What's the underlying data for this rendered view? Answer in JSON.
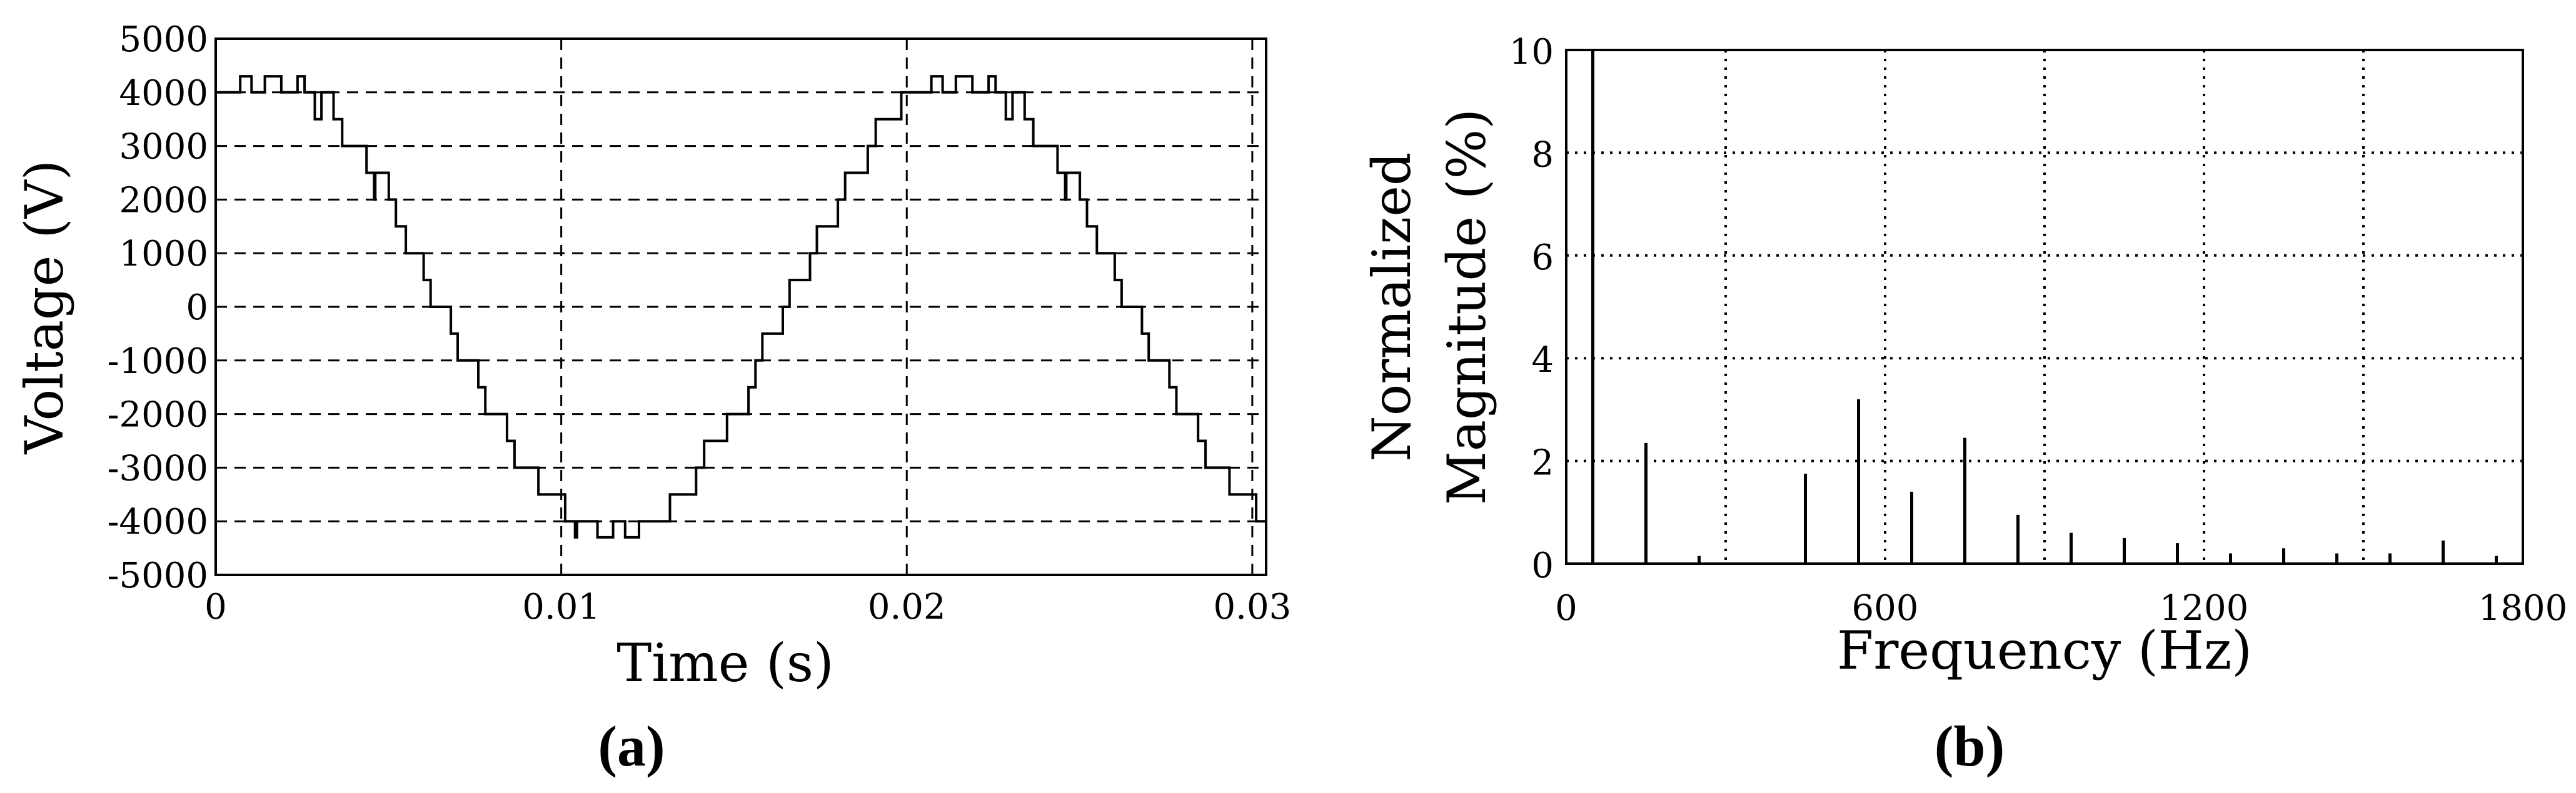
{
  "figure": {
    "panel_a_label": "(a)",
    "panel_b_label": "(b)"
  },
  "chart_data": [
    {
      "type": "line",
      "title": "",
      "xlabel": "Time (s)",
      "ylabel": "Voltage (V)",
      "xlim": [
        0,
        0.0304
      ],
      "ylim": [
        -5000,
        5000
      ],
      "x_ticks": [
        0,
        0.01,
        0.02,
        0.03
      ],
      "x_tick_labels": [
        "0",
        "0.01",
        "0.02",
        "0.03"
      ],
      "y_ticks": [
        5000,
        4000,
        3000,
        2000,
        1000,
        0,
        -1000,
        -2000,
        -3000,
        -4000,
        -5000
      ],
      "y_tick_labels": [
        "5000",
        "4000",
        "3000",
        "2000",
        "1000",
        "0",
        "-1000",
        "-2000",
        "-3000",
        "-4000",
        "-5000"
      ],
      "grid": true,
      "series": [
        {
          "description": "multilevel staircase PWM voltage, fundamental 50 Hz",
          "amplitude": 4300,
          "frequency_hz": 50,
          "phase_deg": 62,
          "level_step": 500,
          "color": "#000000"
        }
      ]
    },
    {
      "type": "bar",
      "title": "",
      "xlabel": "Frequency (Hz)",
      "ylabel": "Normalized Magnitude (%)",
      "ylabel_lines": [
        "Normalized",
        "Magnitude (%)"
      ],
      "xlim": [
        0,
        1800
      ],
      "ylim": [
        0,
        10
      ],
      "x_ticks": [
        0,
        600,
        1200,
        1800
      ],
      "y_ticks": [
        0,
        2,
        4,
        6,
        8,
        10
      ],
      "grid_x": [
        300,
        600,
        900,
        1200,
        1500
      ],
      "grid_y": [
        2,
        4,
        6,
        8
      ],
      "grid": true,
      "bars": [
        {
          "x": 50,
          "y": 10
        },
        {
          "x": 150,
          "y": 2.35
        },
        {
          "x": 250,
          "y": 0.15
        },
        {
          "x": 450,
          "y": 1.75
        },
        {
          "x": 550,
          "y": 3.2
        },
        {
          "x": 650,
          "y": 1.4
        },
        {
          "x": 750,
          "y": 2.45
        },
        {
          "x": 850,
          "y": 0.95
        },
        {
          "x": 950,
          "y": 0.6
        },
        {
          "x": 1050,
          "y": 0.5
        },
        {
          "x": 1150,
          "y": 0.4
        },
        {
          "x": 1250,
          "y": 0.2
        },
        {
          "x": 1350,
          "y": 0.3
        },
        {
          "x": 1450,
          "y": 0.2
        },
        {
          "x": 1550,
          "y": 0.2
        },
        {
          "x": 1650,
          "y": 0.45
        },
        {
          "x": 1750,
          "y": 0.15
        }
      ]
    }
  ]
}
